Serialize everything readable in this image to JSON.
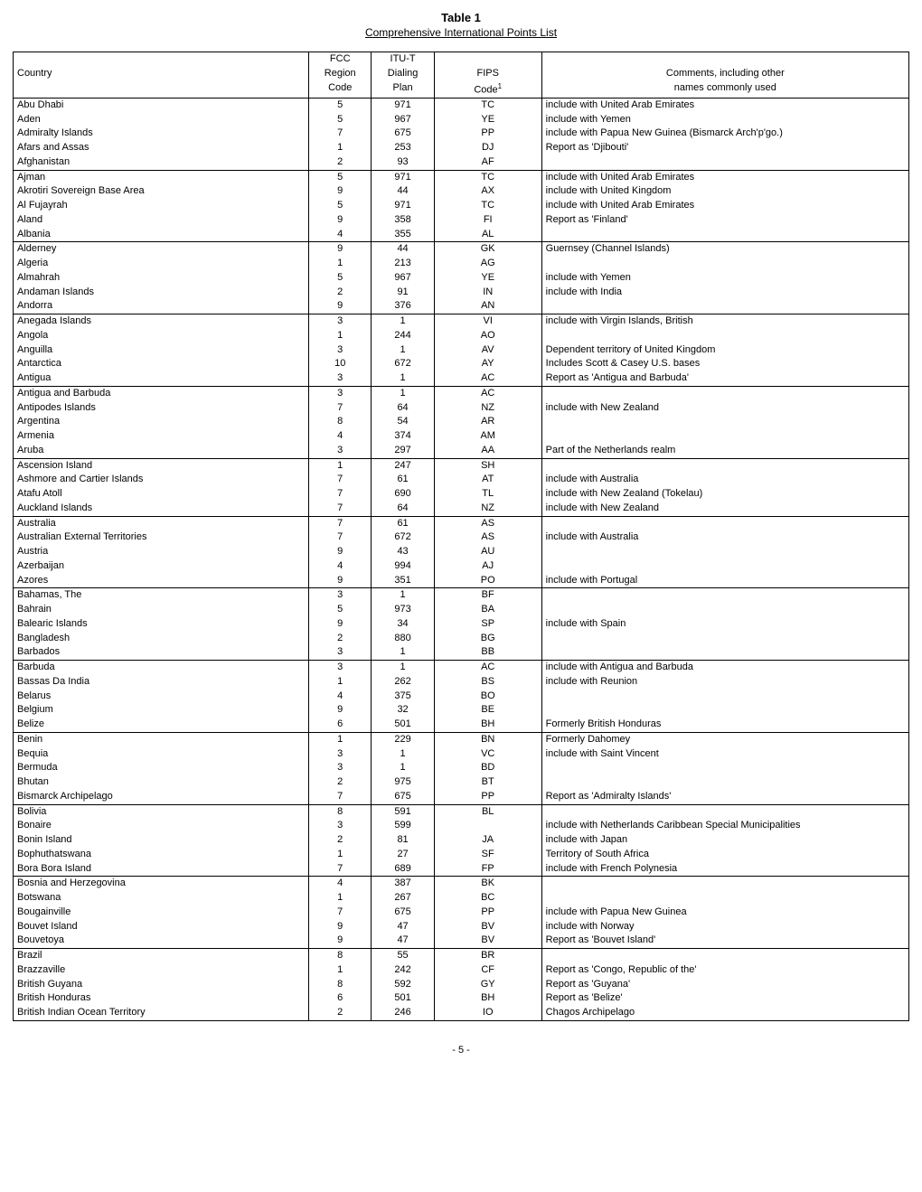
{
  "title": "Table 1",
  "subtitle": "Comprehensive International Points List",
  "pagenum": "- 5 -",
  "header": {
    "country": "Country",
    "fcc1": "FCC",
    "fcc2": "Region",
    "fcc3": "Code",
    "itu1": "ITU-T",
    "itu2": "Dialing",
    "itu3": "Plan",
    "fips2": "FIPS",
    "fips3_html": "Code<sup>1</sup>",
    "comm2": "Comments, including other",
    "comm3": "names commonly used"
  },
  "groups": [
    [
      {
        "c": "Abu Dhabi",
        "f": "5",
        "i": "971",
        "p": "TC",
        "m": "include with United Arab Emirates"
      },
      {
        "c": "Aden",
        "f": "5",
        "i": "967",
        "p": "YE",
        "m": "include with Yemen"
      },
      {
        "c": "Admiralty Islands",
        "f": "7",
        "i": "675",
        "p": "PP",
        "m": "include with Papua New Guinea (Bismarck Arch'p'go.)"
      },
      {
        "c": "Afars and Assas",
        "f": "1",
        "i": "253",
        "p": "DJ",
        "m": "Report as 'Djibouti'"
      },
      {
        "c": "Afghanistan",
        "f": "2",
        "i": "93",
        "p": "AF",
        "m": ""
      }
    ],
    [
      {
        "c": "Ajman",
        "f": "5",
        "i": "971",
        "p": "TC",
        "m": "include with United Arab Emirates"
      },
      {
        "c": "Akrotiri Sovereign Base Area",
        "f": "9",
        "i": "44",
        "p": "AX",
        "m": "include with United Kingdom"
      },
      {
        "c": "Al Fujayrah",
        "f": "5",
        "i": "971",
        "p": "TC",
        "m": "include with United Arab Emirates"
      },
      {
        "c": "Aland",
        "f": "9",
        "i": "358",
        "p": "FI",
        "m": "Report as 'Finland'"
      },
      {
        "c": "Albania",
        "f": "4",
        "i": "355",
        "p": "AL",
        "m": ""
      }
    ],
    [
      {
        "c": "Alderney",
        "f": "9",
        "i": "44",
        "p": "GK",
        "m": "Guernsey (Channel Islands)"
      },
      {
        "c": "Algeria",
        "f": "1",
        "i": "213",
        "p": "AG",
        "m": ""
      },
      {
        "c": "Almahrah",
        "f": "5",
        "i": "967",
        "p": "YE",
        "m": "include with Yemen"
      },
      {
        "c": "Andaman Islands",
        "f": "2",
        "i": "91",
        "p": "IN",
        "m": "include with India"
      },
      {
        "c": "Andorra",
        "f": "9",
        "i": "376",
        "p": "AN",
        "m": ""
      }
    ],
    [
      {
        "c": "Anegada Islands",
        "f": "3",
        "i": "1",
        "p": "VI",
        "m": "include with Virgin Islands, British"
      },
      {
        "c": "Angola",
        "f": "1",
        "i": "244",
        "p": "AO",
        "m": ""
      },
      {
        "c": "Anguilla",
        "f": "3",
        "i": "1",
        "p": "AV",
        "m": "Dependent territory of United Kingdom"
      },
      {
        "c": "Antarctica",
        "f": "10",
        "i": "672",
        "p": "AY",
        "m": "Includes Scott & Casey U.S. bases"
      },
      {
        "c": "Antigua",
        "f": "3",
        "i": "1",
        "p": "AC",
        "m": "Report as 'Antigua and Barbuda'"
      }
    ],
    [
      {
        "c": "Antigua and Barbuda",
        "f": "3",
        "i": "1",
        "p": "AC",
        "m": ""
      },
      {
        "c": "Antipodes Islands",
        "f": "7",
        "i": "64",
        "p": "NZ",
        "m": "include with New Zealand"
      },
      {
        "c": "Argentina",
        "f": "8",
        "i": "54",
        "p": "AR",
        "m": ""
      },
      {
        "c": "Armenia",
        "f": "4",
        "i": "374",
        "p": "AM",
        "m": ""
      },
      {
        "c": "Aruba",
        "f": "3",
        "i": "297",
        "p": "AA",
        "m": "Part of the Netherlands realm"
      }
    ],
    [
      {
        "c": "Ascension Island",
        "f": "1",
        "i": "247",
        "p": "SH",
        "m": ""
      },
      {
        "c": "Ashmore and Cartier Islands",
        "f": "7",
        "i": "61",
        "p": "AT",
        "m": "include with Australia"
      },
      {
        "c": "Atafu Atoll",
        "f": "7",
        "i": "690",
        "p": "TL",
        "m": "include with New Zealand (Tokelau)"
      },
      {
        "c": "Auckland Islands",
        "f": "7",
        "i": "64",
        "p": "NZ",
        "m": "include with New Zealand"
      }
    ],
    [
      {
        "c": "Australia",
        "f": "7",
        "i": "61",
        "p": "AS",
        "m": ""
      },
      {
        "c": "Australian External Territories",
        "f": "7",
        "i": "672",
        "p": "AS",
        "m": "include with Australia"
      },
      {
        "c": "Austria",
        "f": "9",
        "i": "43",
        "p": "AU",
        "m": ""
      },
      {
        "c": "Azerbaijan",
        "f": "4",
        "i": "994",
        "p": "AJ",
        "m": ""
      },
      {
        "c": "Azores",
        "f": "9",
        "i": "351",
        "p": "PO",
        "m": "include with Portugal"
      }
    ],
    [
      {
        "c": "Bahamas, The",
        "f": "3",
        "i": "1",
        "p": "BF",
        "m": ""
      },
      {
        "c": "Bahrain",
        "f": "5",
        "i": "973",
        "p": "BA",
        "m": ""
      },
      {
        "c": "Balearic Islands",
        "f": "9",
        "i": "34",
        "p": "SP",
        "m": "include with Spain"
      },
      {
        "c": "Bangladesh",
        "f": "2",
        "i": "880",
        "p": "BG",
        "m": ""
      },
      {
        "c": "Barbados",
        "f": "3",
        "i": "1",
        "p": "BB",
        "m": ""
      }
    ],
    [
      {
        "c": "Barbuda",
        "f": "3",
        "i": "1",
        "p": "AC",
        "m": "include with Antigua and Barbuda"
      },
      {
        "c": "Bassas Da India",
        "f": "1",
        "i": "262",
        "p": "BS",
        "m": "include with Reunion"
      },
      {
        "c": "Belarus",
        "f": "4",
        "i": "375",
        "p": "BO",
        "m": ""
      },
      {
        "c": "Belgium",
        "f": "9",
        "i": "32",
        "p": "BE",
        "m": ""
      },
      {
        "c": "Belize",
        "f": "6",
        "i": "501",
        "p": "BH",
        "m": "Formerly British Honduras"
      }
    ],
    [
      {
        "c": "Benin",
        "f": "1",
        "i": "229",
        "p": "BN",
        "m": "Formerly Dahomey"
      },
      {
        "c": "Bequia",
        "f": "3",
        "i": "1",
        "p": "VC",
        "m": "include with Saint Vincent"
      },
      {
        "c": "Bermuda",
        "f": "3",
        "i": "1",
        "p": "BD",
        "m": ""
      },
      {
        "c": "Bhutan",
        "f": "2",
        "i": "975",
        "p": "BT",
        "m": ""
      },
      {
        "c": "Bismarck Archipelago",
        "f": "7",
        "i": "675",
        "p": "PP",
        "m": "Report as 'Admiralty Islands'"
      }
    ],
    [
      {
        "c": "Bolivia",
        "f": "8",
        "i": "591",
        "p": "BL",
        "m": ""
      },
      {
        "c": "Bonaire",
        "f": "3",
        "i": "599",
        "p": "",
        "m": "include with Netherlands Caribbean Special Municipalities"
      },
      {
        "c": "Bonin Island",
        "f": "2",
        "i": "81",
        "p": "JA",
        "m": "include with Japan"
      },
      {
        "c": "Bophuthatswana",
        "f": "1",
        "i": "27",
        "p": "SF",
        "m": "Territory of South Africa"
      },
      {
        "c": "Bora Bora Island",
        "f": "7",
        "i": "689",
        "p": "FP",
        "m": "include with French Polynesia"
      }
    ],
    [
      {
        "c": "Bosnia and Herzegovina",
        "f": "4",
        "i": "387",
        "p": "BK",
        "m": ""
      },
      {
        "c": "Botswana",
        "f": "1",
        "i": "267",
        "p": "BC",
        "m": ""
      },
      {
        "c": "Bougainville",
        "f": "7",
        "i": "675",
        "p": "PP",
        "m": "include with Papua New Guinea"
      },
      {
        "c": "Bouvet Island",
        "f": "9",
        "i": "47",
        "p": "BV",
        "m": "include with Norway"
      },
      {
        "c": "Bouvetoya",
        "f": "9",
        "i": "47",
        "p": "BV",
        "m": "Report as 'Bouvet Island'"
      }
    ],
    [
      {
        "c": "Brazil",
        "f": "8",
        "i": "55",
        "p": "BR",
        "m": ""
      },
      {
        "c": "Brazzaville",
        "f": "1",
        "i": "242",
        "p": "CF",
        "m": "Report as 'Congo, Republic of the'"
      },
      {
        "c": "British Guyana",
        "f": "8",
        "i": "592",
        "p": "GY",
        "m": "Report as 'Guyana'"
      },
      {
        "c": "British Honduras",
        "f": "6",
        "i": "501",
        "p": "BH",
        "m": "Report as 'Belize'"
      },
      {
        "c": "British Indian Ocean Territory",
        "f": "2",
        "i": "246",
        "p": "IO",
        "m": "Chagos Archipelago"
      }
    ]
  ]
}
